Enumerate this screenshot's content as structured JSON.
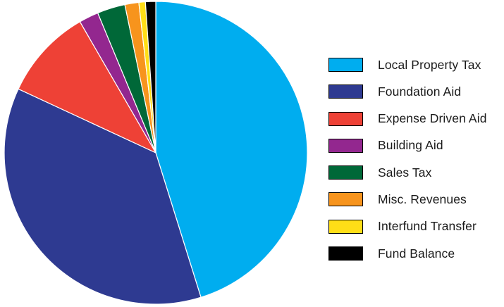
{
  "chart_data": {
    "type": "pie",
    "title": "",
    "legend_position": "right",
    "series": [
      {
        "name": "Local Property Tax",
        "value": 45.5,
        "color": "#00adef"
      },
      {
        "name": "Foundation Aid",
        "value": 37.0,
        "color": "#2e3a91"
      },
      {
        "name": "Expense Driven Aid",
        "value": 9.8,
        "color": "#ee4136"
      },
      {
        "name": "Building Aid",
        "value": 2.1,
        "color": "#93278f"
      },
      {
        "name": "Sales Tax",
        "value": 3.0,
        "color": "#006838"
      },
      {
        "name": "Misc. Revenues",
        "value": 1.5,
        "color": "#f7941d"
      },
      {
        "name": "Interfund Transfer",
        "value": 0.7,
        "color": "#ffde17"
      },
      {
        "name": "Fund Balance",
        "value": 1.1,
        "color": "#000000"
      }
    ]
  }
}
